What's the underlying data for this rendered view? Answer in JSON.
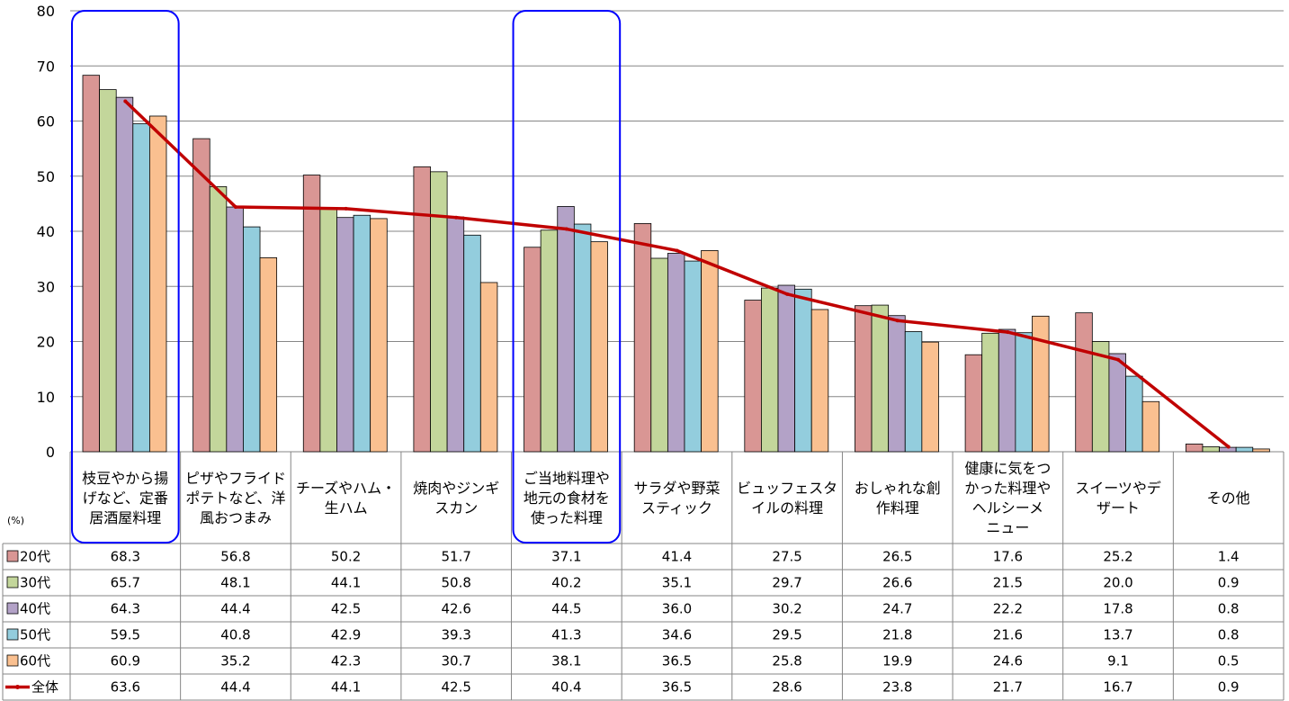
{
  "chart_data": {
    "type": "bar",
    "unit_label": "(%)",
    "ylim": [
      0,
      80
    ],
    "yticks": [
      0,
      10,
      20,
      30,
      40,
      50,
      60,
      70,
      80
    ],
    "grid": true,
    "categories": [
      [
        "枝豆やから揚",
        "げなど、定番",
        "居酒屋料理"
      ],
      [
        "ピザやフライド",
        "ポテトなど、洋",
        "風おつまみ"
      ],
      [
        "チーズやハム・",
        "生ハム"
      ],
      [
        "焼肉やジンギ",
        "スカン"
      ],
      [
        "ご当地料理や",
        "地元の食材を",
        "使った料理"
      ],
      [
        "サラダや野菜",
        "スティック"
      ],
      [
        "ビュッフェスタ",
        "イルの料理"
      ],
      [
        "おしゃれな創",
        "作料理"
      ],
      [
        "健康に気をつ",
        "かった料理や",
        "ヘルシーメ",
        "ニュー"
      ],
      [
        "スイーツやデ",
        "ザート"
      ],
      [
        "その他"
      ]
    ],
    "highlighted_categories": [
      0,
      4
    ],
    "series": [
      {
        "name": "20代",
        "type": "bar",
        "color": "#d99694",
        "values": [
          68.3,
          56.8,
          50.2,
          51.7,
          37.1,
          41.4,
          27.5,
          26.5,
          17.6,
          25.2,
          1.4
        ]
      },
      {
        "name": "30代",
        "type": "bar",
        "color": "#c3d69b",
        "values": [
          65.7,
          48.1,
          44.1,
          50.8,
          40.2,
          35.1,
          29.7,
          26.6,
          21.5,
          20.0,
          0.9
        ]
      },
      {
        "name": "40代",
        "type": "bar",
        "color": "#b3a2c7",
        "values": [
          64.3,
          44.4,
          42.5,
          42.6,
          44.5,
          36.0,
          30.2,
          24.7,
          22.2,
          17.8,
          0.8
        ]
      },
      {
        "name": "50代",
        "type": "bar",
        "color": "#93cddd",
        "values": [
          59.5,
          40.8,
          42.9,
          39.3,
          41.3,
          34.6,
          29.5,
          21.8,
          21.6,
          13.7,
          0.8
        ]
      },
      {
        "name": "60代",
        "type": "bar",
        "color": "#fac090",
        "values": [
          60.9,
          35.2,
          42.3,
          30.7,
          38.1,
          36.5,
          25.8,
          19.9,
          24.6,
          9.1,
          0.5
        ]
      },
      {
        "name": "全体",
        "type": "line",
        "color": "#c00000",
        "values": [
          63.6,
          44.4,
          44.1,
          42.5,
          40.4,
          36.5,
          28.6,
          23.8,
          21.7,
          16.7,
          0.9
        ]
      }
    ],
    "highlight_color": "#0000ff"
  }
}
